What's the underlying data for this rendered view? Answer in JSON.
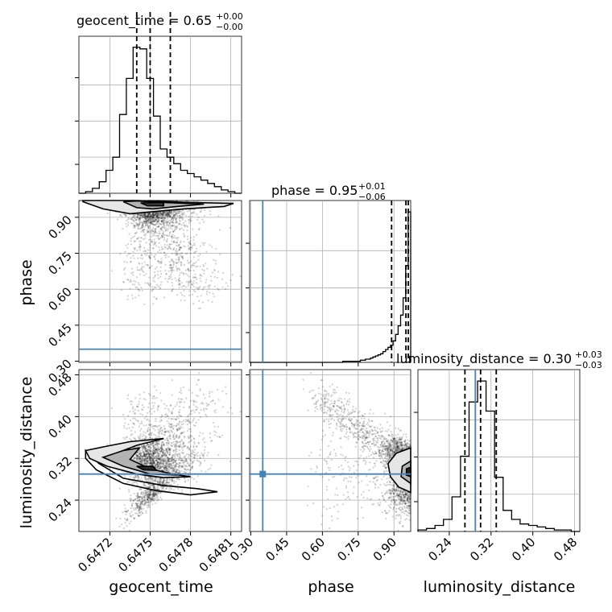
{
  "chart_data": {
    "type": "corner",
    "parameters": [
      "geocent_time",
      "phase",
      "luminosity_distance"
    ],
    "injection": {
      "phase": 0.35,
      "luminosity_distance": 0.29
    },
    "titles": {
      "geocent_time": {
        "prefix": "geocent_time = 0.65",
        "plus": "+0.00",
        "minus": "−0.00"
      },
      "phase": {
        "prefix": "phase = 0.95",
        "plus": "+0.01",
        "minus": "−0.06"
      },
      "luminosity_distance": {
        "prefix": "luminosity_distance = 0.30",
        "plus": "+0.03",
        "minus": "−0.03"
      }
    },
    "axes": {
      "geocent_time": {
        "range": [
          0.64697,
          0.64818
        ],
        "ticks": [
          0.6472,
          0.6475,
          0.6478,
          0.6481
        ],
        "tick_labels": [
          "0.6472",
          "0.6475",
          "0.6478",
          "0.6481"
        ]
      },
      "phase": {
        "range": [
          0.295,
          0.97
        ],
        "ticks": [
          0.3,
          0.45,
          0.6,
          0.75,
          0.9
        ],
        "tick_labels": [
          "0.30",
          "0.45",
          "0.60",
          "0.75",
          "0.90"
        ]
      },
      "luminosity_distance": {
        "range": [
          0.18,
          0.49
        ],
        "ticks": [
          0.24,
          0.32,
          0.4,
          0.48
        ],
        "tick_labels": [
          "0.24",
          "0.32",
          "0.40",
          "0.48"
        ]
      }
    },
    "hist_geocent_time": {
      "bins": [
        0.64697,
        0.64818
      ],
      "values": [
        0,
        1,
        3,
        7,
        14,
        22,
        48,
        70,
        89,
        88,
        70,
        47,
        27,
        22,
        18,
        14,
        12,
        10,
        8,
        6,
        4,
        2,
        1,
        0
      ],
      "quantiles": [
        0.6474,
        0.6475,
        0.64765
      ]
    },
    "hist_phase": {
      "bins": [
        0.295,
        0.97
      ],
      "values": [
        0,
        0,
        0,
        0,
        0,
        0,
        0,
        0,
        0,
        0,
        0,
        0,
        0,
        0,
        0,
        0,
        0,
        0,
        0,
        0,
        0,
        0,
        0,
        0,
        0,
        0,
        0,
        0,
        0,
        0,
        0,
        0,
        0,
        0,
        0,
        0,
        0,
        1,
        1,
        1,
        1,
        1,
        1,
        1,
        2,
        2,
        3,
        3,
        4,
        5,
        6,
        7,
        8,
        10,
        12,
        14,
        16,
        20,
        26,
        34,
        44,
        60,
        90,
        140
      ],
      "quantiles": [
        0.89,
        0.95,
        0.96
      ]
    },
    "hist_luminosity_distance": {
      "bins": [
        0.18,
        0.49
      ],
      "values": [
        1,
        2,
        4,
        8,
        23,
        50,
        86,
        100,
        80,
        36,
        14,
        8,
        5,
        4,
        3,
        2,
        1,
        1,
        0
      ],
      "quantiles": [
        0.27,
        0.3,
        0.33
      ]
    },
    "grid": true
  }
}
